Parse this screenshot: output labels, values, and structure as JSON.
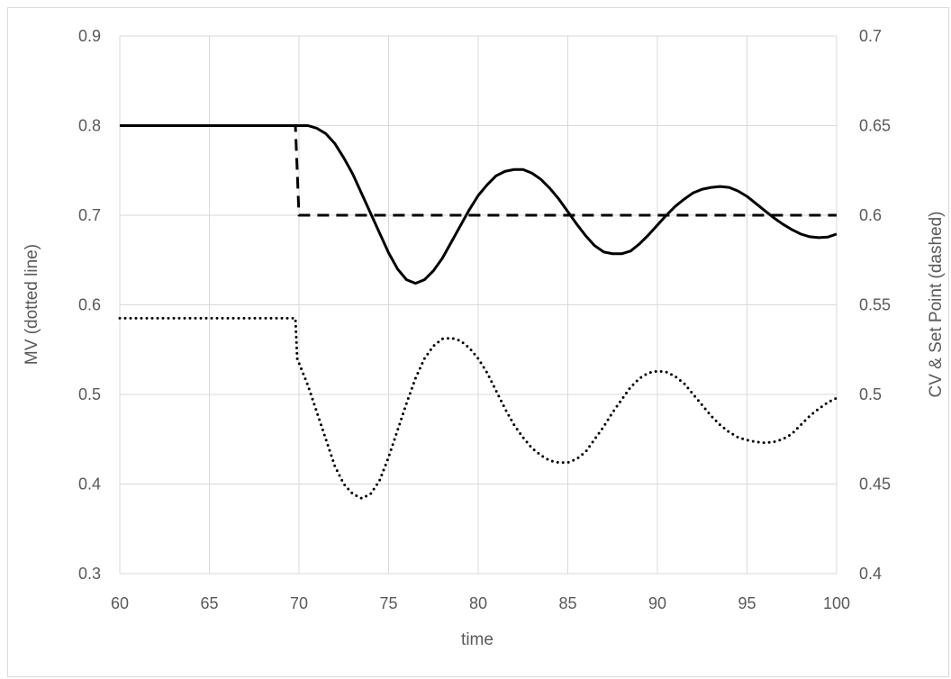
{
  "chart_data": {
    "type": "line",
    "title": "",
    "xlabel": "time",
    "ylabel_left": "MV (dotted line)",
    "ylabel_right": "CV & Set Point (dashed)",
    "xlim": [
      60,
      100
    ],
    "ylim_left": [
      0.3,
      0.9
    ],
    "ylim_right": [
      0.4,
      0.7
    ],
    "x_ticks": [
      "60",
      "65",
      "70",
      "75",
      "80",
      "85",
      "90",
      "95",
      "100"
    ],
    "y_left_ticks": [
      "0.3",
      "0.4",
      "0.5",
      "0.6",
      "0.7",
      "0.8",
      "0.9"
    ],
    "y_right_ticks": [
      "0.4",
      "0.45",
      "0.5",
      "0.55",
      "0.6",
      "0.65",
      "0.7"
    ],
    "grid": true,
    "legend": "none",
    "colors": {
      "line": "#000000",
      "grid": "#d9d9d9",
      "text": "#595959"
    },
    "series": [
      {
        "axis": "right",
        "style": "dotted",
        "points": [
          [
            60,
            0.5425
          ],
          [
            69.8,
            0.5425
          ],
          [
            69.9,
            0.52
          ],
          [
            70.5,
            0.505
          ],
          [
            71,
            0.49
          ],
          [
            71.5,
            0.475
          ],
          [
            72,
            0.46
          ],
          [
            72.5,
            0.45
          ],
          [
            73,
            0.4445
          ],
          [
            73.5,
            0.442
          ],
          [
            74,
            0.4445
          ],
          [
            74.5,
            0.452
          ],
          [
            75,
            0.465
          ],
          [
            75.5,
            0.48
          ],
          [
            76,
            0.495
          ],
          [
            76.5,
            0.509
          ],
          [
            77,
            0.52
          ],
          [
            77.5,
            0.527
          ],
          [
            78,
            0.531
          ],
          [
            78.5,
            0.5315
          ],
          [
            79,
            0.53
          ],
          [
            79.5,
            0.526
          ],
          [
            80,
            0.52
          ],
          [
            80.5,
            0.512
          ],
          [
            81,
            0.502
          ],
          [
            81.5,
            0.492
          ],
          [
            82,
            0.483
          ],
          [
            82.5,
            0.476
          ],
          [
            83,
            0.47
          ],
          [
            83.5,
            0.466
          ],
          [
            84,
            0.463
          ],
          [
            84.5,
            0.462
          ],
          [
            85,
            0.462
          ],
          [
            85.5,
            0.464
          ],
          [
            86,
            0.468
          ],
          [
            86.5,
            0.475
          ],
          [
            87,
            0.482
          ],
          [
            87.5,
            0.49
          ],
          [
            88,
            0.497
          ],
          [
            88.5,
            0.504
          ],
          [
            89,
            0.509
          ],
          [
            89.5,
            0.512
          ],
          [
            90,
            0.513
          ],
          [
            90.5,
            0.5125
          ],
          [
            91,
            0.51
          ],
          [
            91.5,
            0.506
          ],
          [
            92,
            0.5
          ],
          [
            92.5,
            0.494
          ],
          [
            93,
            0.488
          ],
          [
            93.5,
            0.483
          ],
          [
            94,
            0.479
          ],
          [
            94.5,
            0.476
          ],
          [
            95,
            0.4745
          ],
          [
            95.5,
            0.4735
          ],
          [
            96,
            0.473
          ],
          [
            96.5,
            0.4735
          ],
          [
            97,
            0.475
          ],
          [
            97.5,
            0.478
          ],
          [
            98,
            0.483
          ],
          [
            98.5,
            0.488
          ],
          [
            99,
            0.492
          ],
          [
            99.5,
            0.4955
          ],
          [
            100,
            0.498
          ]
        ]
      },
      {
        "axis": "right",
        "style": "dashed",
        "points": [
          [
            60,
            0.65
          ],
          [
            69.8,
            0.65
          ],
          [
            70,
            0.6
          ],
          [
            100,
            0.6
          ]
        ]
      },
      {
        "axis": "right",
        "style": "solid",
        "points": [
          [
            60,
            0.65
          ],
          [
            70,
            0.65
          ],
          [
            70.5,
            0.65
          ],
          [
            71,
            0.6485
          ],
          [
            71.5,
            0.6455
          ],
          [
            72,
            0.64
          ],
          [
            72.5,
            0.632
          ],
          [
            73,
            0.623
          ],
          [
            73.5,
            0.612
          ],
          [
            74,
            0.601
          ],
          [
            74.5,
            0.59
          ],
          [
            75,
            0.579
          ],
          [
            75.5,
            0.57
          ],
          [
            76,
            0.564
          ],
          [
            76.5,
            0.562
          ],
          [
            77,
            0.564
          ],
          [
            77.5,
            0.569
          ],
          [
            78,
            0.576
          ],
          [
            78.5,
            0.585
          ],
          [
            79,
            0.594
          ],
          [
            79.5,
            0.603
          ],
          [
            80,
            0.611
          ],
          [
            80.5,
            0.617
          ],
          [
            81,
            0.622
          ],
          [
            81.5,
            0.6245
          ],
          [
            82,
            0.6255
          ],
          [
            82.5,
            0.6255
          ],
          [
            83,
            0.6235
          ],
          [
            83.5,
            0.62
          ],
          [
            84,
            0.615
          ],
          [
            84.5,
            0.609
          ],
          [
            85,
            0.602
          ],
          [
            85.5,
            0.595
          ],
          [
            86,
            0.5885
          ],
          [
            86.5,
            0.583
          ],
          [
            87,
            0.5795
          ],
          [
            87.5,
            0.5785
          ],
          [
            88,
            0.5785
          ],
          [
            88.5,
            0.58
          ],
          [
            89,
            0.584
          ],
          [
            89.5,
            0.589
          ],
          [
            90,
            0.5945
          ],
          [
            90.5,
            0.6
          ],
          [
            91,
            0.605
          ],
          [
            91.5,
            0.609
          ],
          [
            92,
            0.6125
          ],
          [
            92.5,
            0.6145
          ],
          [
            93,
            0.6155
          ],
          [
            93.5,
            0.616
          ],
          [
            94,
            0.6155
          ],
          [
            94.5,
            0.6135
          ],
          [
            95,
            0.6105
          ],
          [
            95.5,
            0.6065
          ],
          [
            96,
            0.6025
          ],
          [
            96.5,
            0.5985
          ],
          [
            97,
            0.595
          ],
          [
            97.5,
            0.592
          ],
          [
            98,
            0.5895
          ],
          [
            98.5,
            0.588
          ],
          [
            99,
            0.5875
          ],
          [
            99.5,
            0.5878
          ],
          [
            100,
            0.5895
          ]
        ]
      }
    ]
  }
}
